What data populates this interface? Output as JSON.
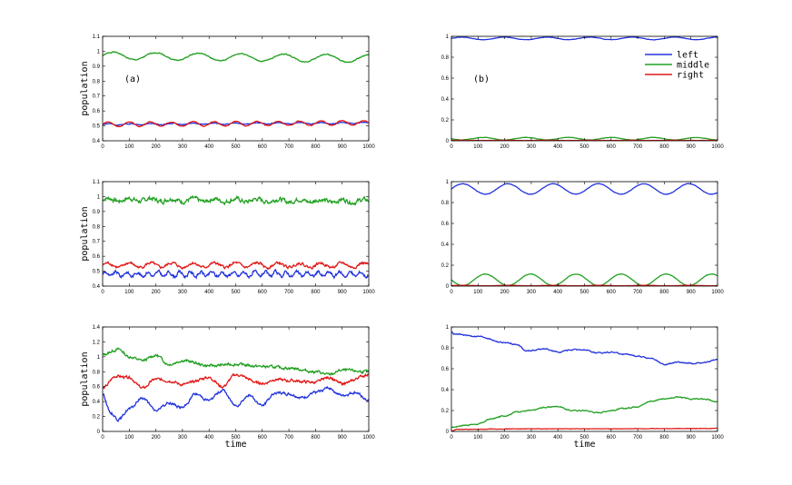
{
  "colors": {
    "left": "#2233dd",
    "middle": "#22a022",
    "right": "#e01818"
  },
  "legend": [
    "left",
    "middle",
    "right"
  ],
  "chart_data": [
    {
      "type": "line",
      "tag": "(a)",
      "xlabel": "",
      "ylabel": "population",
      "xlim": [
        0,
        1000
      ],
      "ylim": [
        0.4,
        1.1
      ],
      "xticks": [
        0,
        100,
        200,
        300,
        400,
        500,
        600,
        700,
        800,
        900,
        1000
      ],
      "yticks": [
        0.4,
        0.5,
        0.6,
        0.7,
        0.8,
        0.9,
        1,
        1.1
      ],
      "series": [
        {
          "color": "#22a022",
          "kind": "osc",
          "base": 0.97,
          "amp": 0.025,
          "period": 160,
          "trend": -0.02,
          "noise": 0.004,
          "seed": 1
        },
        {
          "color": "#2233dd",
          "kind": "osc",
          "base": 0.51,
          "amp": 0.004,
          "period": 80,
          "trend": 0.01,
          "noise": 0.003,
          "seed": 2
        },
        {
          "color": "#e01818",
          "kind": "osc",
          "base": 0.51,
          "amp": 0.015,
          "period": 80,
          "trend": 0.01,
          "noise": 0.003,
          "seed": 3
        }
      ]
    },
    {
      "type": "line",
      "tag": "(b)",
      "xlabel": "",
      "ylabel": "",
      "xlim": [
        0,
        1000
      ],
      "ylim": [
        0,
        1
      ],
      "xticks": [
        0,
        100,
        200,
        300,
        400,
        500,
        600,
        700,
        800,
        900,
        1000
      ],
      "yticks": [
        0,
        0.2,
        0.4,
        0.6,
        0.8,
        1
      ],
      "legend_pos": "top-right",
      "series": [
        {
          "name": "left",
          "color": "#2233dd",
          "kind": "osc",
          "base": 0.98,
          "amp": 0.012,
          "period": 160,
          "trend": 0,
          "noise": 0.002,
          "seed": 4
        },
        {
          "name": "middle",
          "color": "#22a022",
          "kind": "osc",
          "base": 0.02,
          "amp": 0.012,
          "period": 160,
          "trend": 0,
          "noise": 0.002,
          "seed": 5,
          "phase": 3.14
        },
        {
          "name": "right",
          "color": "#e01818",
          "kind": "osc",
          "base": 0.004,
          "amp": 0.001,
          "period": 160,
          "trend": 0,
          "noise": 0.001,
          "seed": 6
        }
      ]
    },
    {
      "type": "line",
      "tag": "",
      "xlabel": "",
      "ylabel": "population",
      "xlim": [
        0,
        1000
      ],
      "ylim": [
        0.4,
        1.1
      ],
      "xticks": [
        0,
        100,
        200,
        300,
        400,
        500,
        600,
        700,
        800,
        900,
        1000
      ],
      "yticks": [
        0.4,
        0.5,
        0.6,
        0.7,
        0.8,
        0.9,
        1,
        1.1
      ],
      "series": [
        {
          "color": "#22a022",
          "kind": "osc",
          "base": 0.98,
          "amp": 0.01,
          "period": 80,
          "trend": -0.01,
          "noise": 0.016,
          "seed": 7
        },
        {
          "color": "#e01818",
          "kind": "osc",
          "base": 0.54,
          "amp": 0.015,
          "period": 80,
          "trend": 0,
          "noise": 0.01,
          "seed": 8
        },
        {
          "color": "#2233dd",
          "kind": "osc",
          "base": 0.48,
          "amp": 0.015,
          "period": 40,
          "trend": 0,
          "noise": 0.012,
          "seed": 9
        }
      ]
    },
    {
      "type": "line",
      "tag": "",
      "xlabel": "",
      "ylabel": "",
      "xlim": [
        0,
        1000
      ],
      "ylim": [
        0,
        1
      ],
      "xticks": [
        0,
        100,
        200,
        300,
        400,
        500,
        600,
        700,
        800,
        900,
        1000
      ],
      "yticks": [
        0,
        0.2,
        0.4,
        0.6,
        0.8,
        1
      ],
      "series": [
        {
          "color": "#2233dd",
          "kind": "osc",
          "base": 0.93,
          "amp": 0.05,
          "period": 170,
          "trend": 0,
          "noise": 0.002,
          "seed": 10
        },
        {
          "color": "#22a022",
          "kind": "osc",
          "base": 0.06,
          "amp": 0.055,
          "period": 170,
          "trend": 0,
          "noise": 0.002,
          "seed": 11,
          "phase": 3.14
        },
        {
          "color": "#e01818",
          "kind": "osc",
          "base": 0.005,
          "amp": 0.002,
          "period": 170,
          "trend": 0,
          "noise": 0.001,
          "seed": 12
        }
      ]
    },
    {
      "type": "line",
      "tag": "",
      "xlabel": "time",
      "ylabel": "population",
      "xlim": [
        0,
        1000
      ],
      "ylim": [
        0,
        1.4
      ],
      "xticks": [
        0,
        100,
        200,
        300,
        400,
        500,
        600,
        700,
        800,
        900,
        1000
      ],
      "yticks": [
        0,
        0.2,
        0.4,
        0.6,
        0.8,
        1,
        1.2,
        1.4
      ],
      "series": [
        {
          "color": "#22a022",
          "kind": "pts",
          "noise": 0.02,
          "seed": 13,
          "points": [
            [
              0,
              1.03
            ],
            [
              60,
              1.1
            ],
            [
              100,
              1.0
            ],
            [
              150,
              0.95
            ],
            [
              200,
              1.02
            ],
            [
              250,
              0.9
            ],
            [
              300,
              0.95
            ],
            [
              400,
              0.88
            ],
            [
              500,
              0.9
            ],
            [
              600,
              0.87
            ],
            [
              700,
              0.85
            ],
            [
              800,
              0.8
            ],
            [
              850,
              0.76
            ],
            [
              900,
              0.82
            ],
            [
              1000,
              0.8
            ]
          ]
        },
        {
          "color": "#e01818",
          "kind": "pts",
          "noise": 0.02,
          "seed": 14,
          "points": [
            [
              0,
              0.58
            ],
            [
              50,
              0.74
            ],
            [
              100,
              0.72
            ],
            [
              150,
              0.58
            ],
            [
              200,
              0.7
            ],
            [
              250,
              0.68
            ],
            [
              300,
              0.63
            ],
            [
              400,
              0.72
            ],
            [
              450,
              0.6
            ],
            [
              500,
              0.76
            ],
            [
              600,
              0.64
            ],
            [
              650,
              0.7
            ],
            [
              700,
              0.68
            ],
            [
              800,
              0.66
            ],
            [
              850,
              0.72
            ],
            [
              900,
              0.64
            ],
            [
              1000,
              0.76
            ]
          ]
        },
        {
          "color": "#2233dd",
          "kind": "pts",
          "noise": 0.02,
          "seed": 15,
          "points": [
            [
              0,
              0.5
            ],
            [
              30,
              0.25
            ],
            [
              60,
              0.16
            ],
            [
              100,
              0.3
            ],
            [
              150,
              0.45
            ],
            [
              200,
              0.28
            ],
            [
              250,
              0.38
            ],
            [
              300,
              0.32
            ],
            [
              350,
              0.5
            ],
            [
              400,
              0.42
            ],
            [
              450,
              0.55
            ],
            [
              500,
              0.35
            ],
            [
              550,
              0.48
            ],
            [
              600,
              0.35
            ],
            [
              650,
              0.52
            ],
            [
              700,
              0.5
            ],
            [
              750,
              0.45
            ],
            [
              800,
              0.52
            ],
            [
              850,
              0.58
            ],
            [
              900,
              0.48
            ],
            [
              950,
              0.52
            ],
            [
              1000,
              0.42
            ]
          ]
        }
      ]
    },
    {
      "type": "line",
      "tag": "",
      "xlabel": "time",
      "ylabel": "",
      "xlim": [
        0,
        1000
      ],
      "ylim": [
        0,
        1
      ],
      "xticks": [
        0,
        100,
        200,
        300,
        400,
        500,
        600,
        700,
        800,
        900,
        1000
      ],
      "yticks": [
        0,
        0.2,
        0.4,
        0.6,
        0.8,
        1
      ],
      "series": [
        {
          "color": "#2233dd",
          "kind": "pts",
          "noise": 0.006,
          "seed": 16,
          "points": [
            [
              0,
              0.96
            ],
            [
              10,
              0.93
            ],
            [
              100,
              0.91
            ],
            [
              200,
              0.85
            ],
            [
              250,
              0.83
            ],
            [
              280,
              0.77
            ],
            [
              350,
              0.79
            ],
            [
              400,
              0.76
            ],
            [
              450,
              0.78
            ],
            [
              500,
              0.78
            ],
            [
              550,
              0.75
            ],
            [
              600,
              0.76
            ],
            [
              650,
              0.74
            ],
            [
              700,
              0.72
            ],
            [
              750,
              0.7
            ],
            [
              800,
              0.64
            ],
            [
              850,
              0.66
            ],
            [
              900,
              0.65
            ],
            [
              950,
              0.66
            ],
            [
              1000,
              0.69
            ]
          ]
        },
        {
          "color": "#22a022",
          "kind": "pts",
          "noise": 0.006,
          "seed": 17,
          "points": [
            [
              0,
              0.04
            ],
            [
              50,
              0.06
            ],
            [
              100,
              0.07
            ],
            [
              150,
              0.12
            ],
            [
              200,
              0.15
            ],
            [
              250,
              0.19
            ],
            [
              300,
              0.2
            ],
            [
              350,
              0.23
            ],
            [
              400,
              0.24
            ],
            [
              450,
              0.2
            ],
            [
              500,
              0.2
            ],
            [
              550,
              0.18
            ],
            [
              600,
              0.2
            ],
            [
              650,
              0.22
            ],
            [
              700,
              0.24
            ],
            [
              750,
              0.29
            ],
            [
              800,
              0.31
            ],
            [
              850,
              0.33
            ],
            [
              900,
              0.31
            ],
            [
              950,
              0.31
            ],
            [
              1000,
              0.28
            ]
          ]
        },
        {
          "color": "#e01818",
          "kind": "pts",
          "noise": 0.002,
          "seed": 18,
          "points": [
            [
              0,
              0.0
            ],
            [
              20,
              0.02
            ],
            [
              300,
              0.025
            ],
            [
              600,
              0.025
            ],
            [
              1000,
              0.028
            ]
          ]
        }
      ]
    }
  ]
}
